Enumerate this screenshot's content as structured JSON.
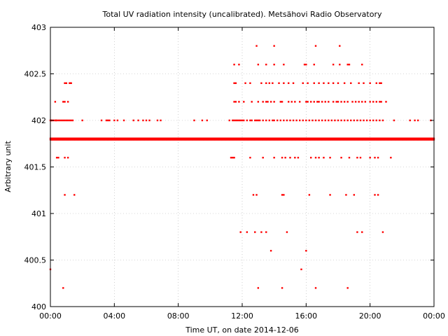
{
  "chart_data": {
    "type": "scatter",
    "title": "Total UV radiation intensity (uncalibrated). Metsähovi Radio Observatory",
    "xlabel": "Time UT, on date 2014-12-06",
    "ylabel": "Arbitrary unit",
    "xlim_hours": [
      0,
      24
    ],
    "ylim": [
      400,
      403
    ],
    "x_ticks": [
      "00:00",
      "04:00",
      "08:00",
      "12:00",
      "16:00",
      "20:00",
      "00:00"
    ],
    "y_ticks": [
      "400",
      "400.5",
      "401",
      "401.5",
      "402",
      "402.5",
      "403"
    ],
    "grid": true,
    "marker_color": "#ff0000",
    "baseline_value": 401.8,
    "series": [
      {
        "x_hours": [
          0.0,
          0.05,
          0.1,
          0.2,
          0.3,
          0.35,
          0.4,
          0.5,
          0.6,
          0.7,
          0.8,
          0.9,
          1.0,
          1.1,
          1.2,
          1.3,
          1.4,
          2.0,
          3.2,
          3.5,
          3.6,
          3.7,
          4.0,
          4.2,
          4.6,
          5.2,
          5.5,
          5.8,
          6.0,
          6.2,
          6.7,
          6.9,
          9.0,
          9.5,
          9.8,
          11.2,
          11.4,
          11.5,
          11.6,
          11.7,
          11.8,
          11.9,
          12.0,
          12.1,
          12.3,
          12.5,
          12.6,
          12.8,
          12.9,
          13.0,
          13.1,
          13.3,
          13.5,
          13.7,
          13.9,
          14.0,
          14.2,
          14.4,
          14.6,
          14.8,
          15.0,
          15.2,
          15.4,
          15.6,
          15.8,
          16.0,
          16.2,
          16.4,
          16.6,
          16.8,
          17.0,
          17.2,
          17.4,
          17.6,
          17.8,
          18.0,
          18.2,
          18.4,
          18.6,
          18.8,
          19.0,
          19.2,
          19.4,
          19.6,
          19.8,
          20.0,
          20.2,
          20.4,
          20.6,
          20.8,
          21.5,
          22.5,
          22.8,
          23.0,
          23.8,
          0.3,
          0.8,
          0.9,
          1.1,
          11.5,
          11.6,
          11.8,
          12.1,
          12.6,
          13.0,
          13.3,
          13.5,
          13.6,
          13.8,
          14.0,
          14.4,
          14.5,
          14.9,
          15.1,
          15.3,
          15.6,
          16.0,
          16.1,
          16.3,
          16.5,
          16.7,
          16.8,
          17.0,
          17.2,
          17.4,
          17.7,
          17.9,
          18.0,
          18.2,
          18.4,
          18.6,
          18.9,
          19.1,
          19.3,
          19.5,
          19.7,
          20.0,
          20.2,
          20.4,
          20.6,
          20.7,
          21.0,
          0.9,
          1.0,
          1.2,
          1.25,
          1.3,
          11.5,
          11.6,
          12.2,
          12.5,
          13.2,
          13.5,
          13.7,
          13.9,
          14.3,
          14.6,
          14.9,
          15.2,
          15.8,
          16.1,
          16.5,
          16.8,
          17.1,
          17.4,
          17.7,
          18.0,
          18.4,
          18.8,
          19.3,
          19.6,
          20.0,
          20.4,
          20.6,
          20.7,
          11.5,
          11.8,
          13.0,
          13.5,
          14.0,
          14.6,
          15.9,
          16.0,
          16.5,
          17.7,
          18.1,
          18.6,
          18.7,
          19.5,
          0.4,
          0.5,
          0.9,
          1.1,
          11.3,
          11.4,
          11.5,
          12.5,
          13.3,
          14.0,
          14.5,
          14.7,
          15.0,
          15.3,
          15.5,
          16.3,
          16.6,
          16.8,
          17.1,
          17.5,
          18.2,
          18.7,
          19.2,
          19.4,
          20.0,
          20.3,
          20.5,
          21.3,
          0.9,
          1.5,
          12.7,
          12.9,
          14.5,
          14.6,
          16.2,
          17.5,
          18.5,
          19.0,
          20.3,
          20.5,
          11.9,
          12.3,
          12.8,
          13.2,
          13.5,
          14.8,
          19.2,
          19.5,
          20.8,
          13.8,
          16.0,
          0.0,
          15.7,
          0.8,
          13.0,
          14.5,
          16.6,
          18.6,
          12.9,
          14.0,
          16.6,
          18.1
        ],
        "y": [
          402,
          402,
          402,
          402,
          402,
          402,
          402,
          402,
          402,
          402,
          402,
          402,
          402,
          402,
          402,
          402,
          402,
          402,
          402,
          402,
          402,
          402,
          402,
          402,
          402,
          402,
          402,
          402,
          402,
          402,
          402,
          402,
          402,
          402,
          402,
          402,
          402,
          402,
          402,
          402,
          402,
          402,
          402,
          402,
          402,
          402,
          402,
          402,
          402,
          402,
          402,
          402,
          402,
          402,
          402,
          402,
          402,
          402,
          402,
          402,
          402,
          402,
          402,
          402,
          402,
          402,
          402,
          402,
          402,
          402,
          402,
          402,
          402,
          402,
          402,
          402,
          402,
          402,
          402,
          402,
          402,
          402,
          402,
          402,
          402,
          402,
          402,
          402,
          402,
          402,
          402,
          402,
          402,
          402,
          402,
          402.2,
          402.2,
          402.2,
          402.2,
          402.2,
          402.2,
          402.2,
          402.2,
          402.2,
          402.2,
          402.2,
          402.2,
          402.2,
          402.2,
          402.2,
          402.2,
          402.2,
          402.2,
          402.2,
          402.2,
          402.2,
          402.2,
          402.2,
          402.2,
          402.2,
          402.2,
          402.2,
          402.2,
          402.2,
          402.2,
          402.2,
          402.2,
          402.2,
          402.2,
          402.2,
          402.2,
          402.2,
          402.2,
          402.2,
          402.2,
          402.2,
          402.2,
          402.2,
          402.2,
          402.2,
          402.2,
          402.2,
          402.4,
          402.4,
          402.4,
          402.4,
          402.4,
          402.4,
          402.4,
          402.4,
          402.4,
          402.4,
          402.4,
          402.4,
          402.4,
          402.4,
          402.4,
          402.4,
          402.4,
          402.4,
          402.4,
          402.4,
          402.4,
          402.4,
          402.4,
          402.4,
          402.4,
          402.4,
          402.4,
          402.4,
          402.4,
          402.4,
          402.4,
          402.4,
          402.4,
          402.6,
          402.6,
          402.6,
          402.6,
          402.6,
          402.6,
          402.6,
          402.6,
          402.6,
          402.6,
          402.6,
          402.6,
          402.6,
          402.6,
          401.6,
          401.6,
          401.6,
          401.6,
          401.6,
          401.6,
          401.6,
          401.6,
          401.6,
          401.6,
          401.6,
          401.6,
          401.6,
          401.6,
          401.6,
          401.6,
          401.6,
          401.6,
          401.6,
          401.6,
          401.6,
          401.6,
          401.6,
          401.6,
          401.6,
          401.6,
          401.6,
          401.6,
          401.2,
          401.2,
          401.2,
          401.2,
          401.2,
          401.2,
          401.2,
          401.2,
          401.2,
          401.2,
          401.2,
          401.2,
          400.8,
          400.8,
          400.8,
          400.8,
          400.8,
          400.8,
          400.8,
          400.8,
          400.8,
          400.6,
          400.6,
          400.4,
          400.4,
          400.2,
          400.2,
          400.2,
          400.2,
          400.2,
          402.8,
          402.8,
          402.8,
          402.8
        ]
      }
    ]
  }
}
